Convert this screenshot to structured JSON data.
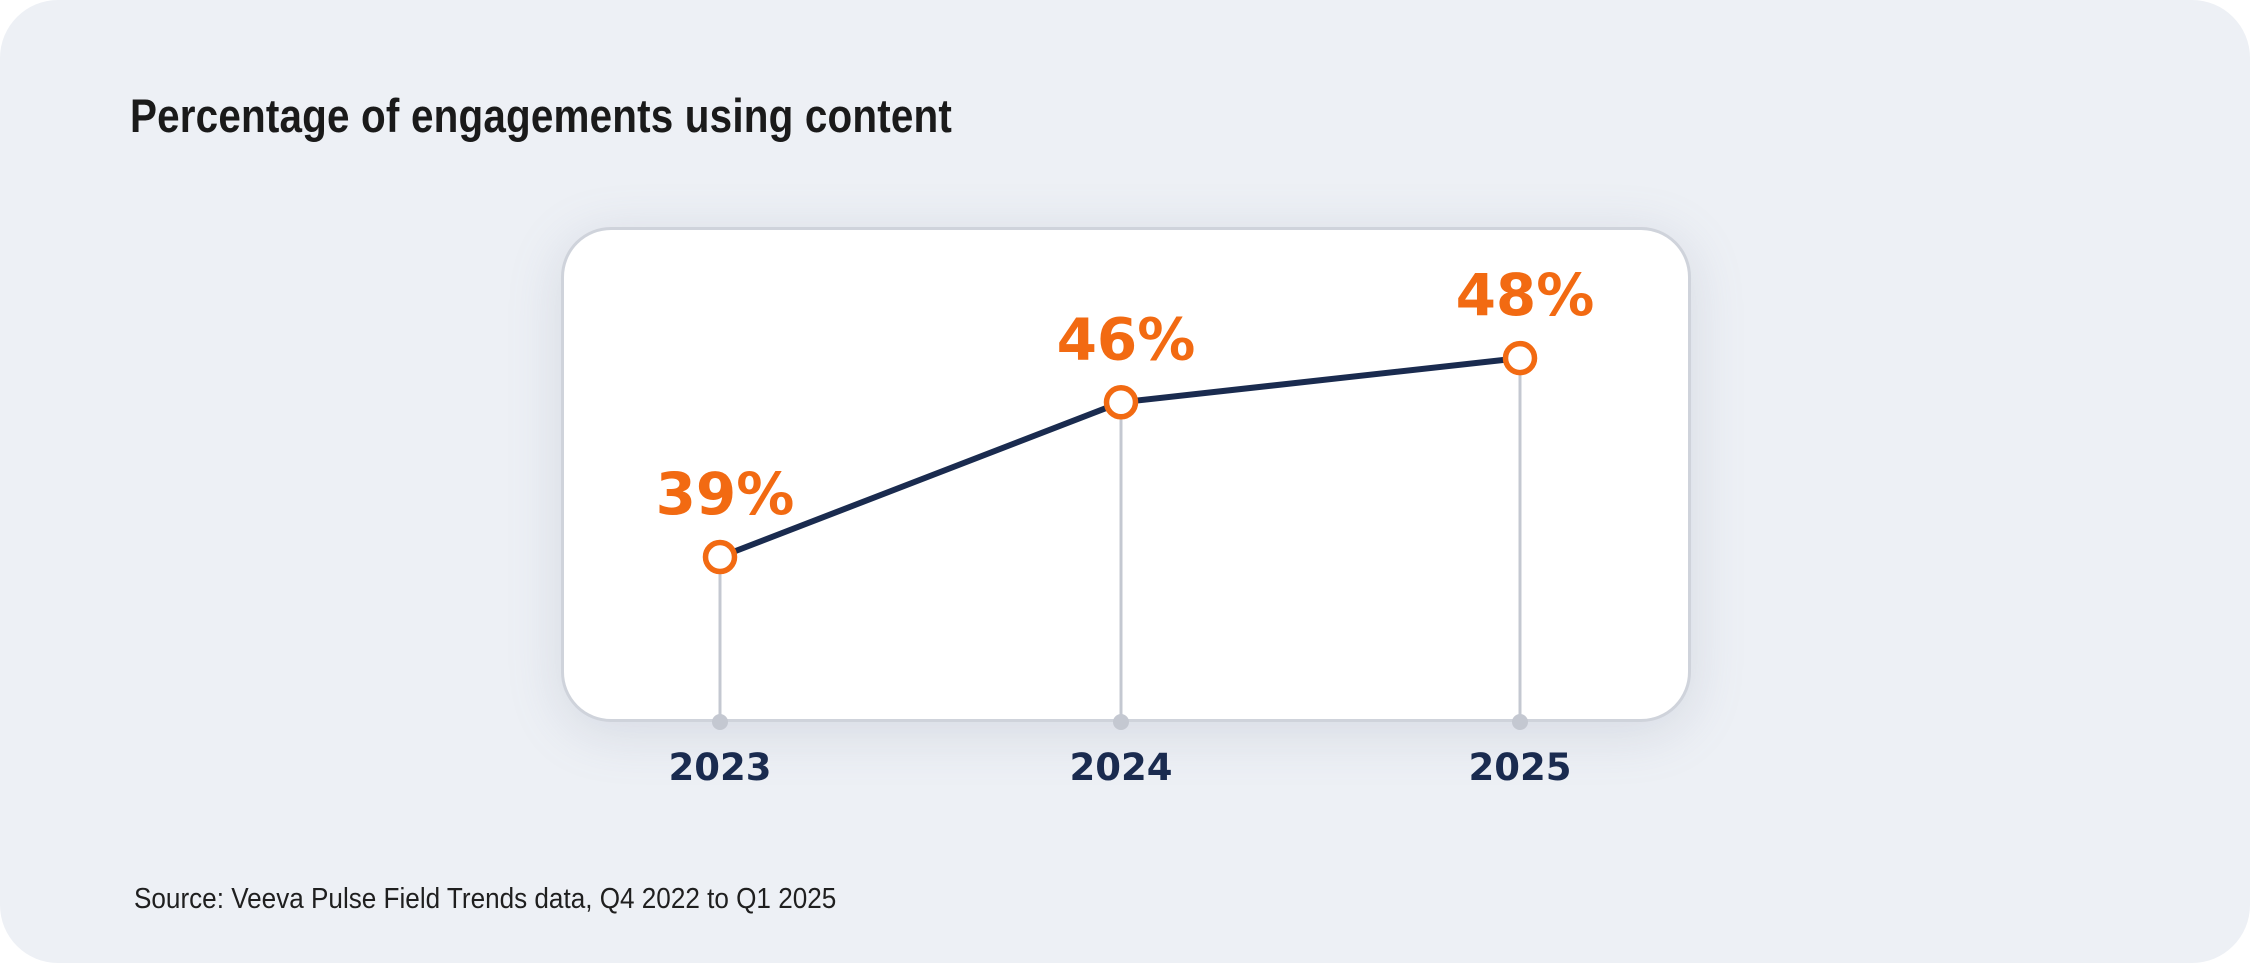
{
  "colors": {
    "background": "#edf0f5",
    "line": "#1a2b4f",
    "accent": "#f26a12",
    "stem": "#c4c8d1"
  },
  "title": "Percentage of engagements using content",
  "source": "Source: Veeva Pulse Field Trends data, Q4 2022 to Q1 2025",
  "chart_data": {
    "type": "line",
    "title": "Percentage of engagements using content",
    "categories": [
      "2023",
      "2024",
      "2025"
    ],
    "values": [
      39,
      46,
      48
    ],
    "value_labels": [
      "39%",
      "46%",
      "48%"
    ],
    "ylabel": "",
    "xlabel": "",
    "unit": "%",
    "grid": false
  }
}
